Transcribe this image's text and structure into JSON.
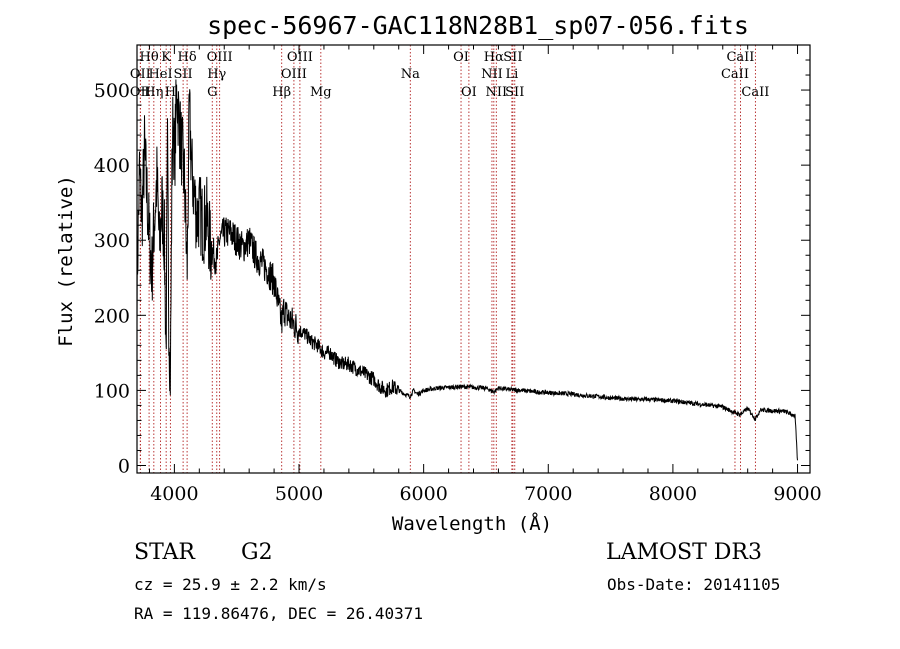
{
  "chart_data": {
    "type": "line",
    "title": "spec-56967-GAC118N28B1_sp07-056.fits",
    "xlabel": "Wavelength (Å)",
    "ylabel": "Flux (relative)",
    "xlim": [
      3700,
      9100
    ],
    "ylim": [
      -10,
      560
    ],
    "xticks": [
      4000,
      5000,
      6000,
      7000,
      8000,
      9000
    ],
    "xtick_labels": [
      "4000",
      "5000",
      "6000",
      "7000",
      "8000",
      "9000"
    ],
    "yticks": [
      0,
      100,
      200,
      300,
      400,
      500
    ],
    "ytick_labels": [
      "0",
      "100",
      "200",
      "300",
      "400",
      "500"
    ],
    "xminor_step": 200,
    "yminor_step": 20,
    "series": [
      {
        "name": "spectrum",
        "x": [
          3700,
          3720,
          3740,
          3760,
          3780,
          3800,
          3820,
          3840,
          3860,
          3880,
          3900,
          3920,
          3933,
          3945,
          3955,
          3968,
          3980,
          3990,
          4000,
          4020,
          4040,
          4060,
          4080,
          4102,
          4120,
          4140,
          4160,
          4180,
          4200,
          4230,
          4260,
          4290,
          4320,
          4340,
          4360,
          4400,
          4450,
          4500,
          4550,
          4600,
          4650,
          4700,
          4750,
          4800,
          4861,
          4880,
          4900,
          4950,
          5000,
          5050,
          5100,
          5150,
          5200,
          5250,
          5300,
          5350,
          5400,
          5450,
          5500,
          5550,
          5600,
          5650,
          5700,
          5750,
          5800,
          5850,
          5890,
          5920,
          5950,
          6000,
          6100,
          6200,
          6300,
          6400,
          6500,
          6563,
          6600,
          6700,
          6800,
          6900,
          7000,
          7100,
          7200,
          7300,
          7400,
          7500,
          7600,
          7700,
          7800,
          7900,
          8000,
          8100,
          8200,
          8300,
          8400,
          8498,
          8542,
          8600,
          8662,
          8700,
          8800,
          8900,
          8980,
          9000
        ],
        "y": [
          240,
          390,
          330,
          420,
          360,
          300,
          260,
          330,
          380,
          290,
          350,
          300,
          150,
          420,
          200,
          120,
          380,
          470,
          400,
          500,
          450,
          420,
          380,
          260,
          470,
          390,
          360,
          330,
          340,
          320,
          330,
          290,
          280,
          270,
          300,
          310,
          310,
          300,
          290,
          300,
          280,
          270,
          260,
          245,
          190,
          210,
          200,
          190,
          180,
          175,
          165,
          160,
          150,
          150,
          140,
          135,
          135,
          130,
          125,
          120,
          115,
          105,
          100,
          105,
          100,
          95,
          92,
          100,
          95,
          100,
          103,
          104,
          105,
          104,
          103,
          98,
          103,
          101,
          100,
          98,
          97,
          96,
          95,
          93,
          92,
          90,
          89,
          88,
          88,
          87,
          86,
          84,
          82,
          80,
          78,
          70,
          68,
          76,
          62,
          74,
          73,
          72,
          66,
          5
        ]
      }
    ],
    "line_markers": [
      {
        "label": "Hθ",
        "x": 3797,
        "row": 1
      },
      {
        "label": "OII",
        "x": 3727,
        "row": 2
      },
      {
        "label": "OII",
        "x": 3727,
        "row": 3
      },
      {
        "label": "Hη",
        "x": 3835,
        "row": 3
      },
      {
        "label": "K",
        "x": 3934,
        "row": 1
      },
      {
        "label": "HeI",
        "x": 3889,
        "row": 2
      },
      {
        "label": "H",
        "x": 3968,
        "row": 3
      },
      {
        "label": "SII",
        "x": 4070,
        "row": 2
      },
      {
        "label": "Hδ",
        "x": 4102,
        "row": 1
      },
      {
        "label": "OIII",
        "x": 4363,
        "row": 1
      },
      {
        "label": "Hγ",
        "x": 4340,
        "row": 2
      },
      {
        "label": "G",
        "x": 4304,
        "row": 3
      },
      {
        "label": "Hβ",
        "x": 4861,
        "row": 3
      },
      {
        "label": "OIII",
        "x": 5007,
        "row": 1
      },
      {
        "label": "OIII",
        "x": 4959,
        "row": 2
      },
      {
        "label": "Mg",
        "x": 5175,
        "row": 3
      },
      {
        "label": "Na",
        "x": 5893,
        "row": 2
      },
      {
        "label": "OI",
        "x": 6300,
        "row": 1
      },
      {
        "label": "OI",
        "x": 6363,
        "row": 3
      },
      {
        "label": "Hα",
        "x": 6563,
        "row": 1
      },
      {
        "label": "NII",
        "x": 6548,
        "row": 2
      },
      {
        "label": "NII",
        "x": 6583,
        "row": 3
      },
      {
        "label": "SII",
        "x": 6716,
        "row": 1
      },
      {
        "label": "Li",
        "x": 6708,
        "row": 2
      },
      {
        "label": "SII",
        "x": 6731,
        "row": 3
      },
      {
        "label": "CaII",
        "x": 8542,
        "row": 1
      },
      {
        "label": "CaII",
        "x": 8498,
        "row": 2
      },
      {
        "label": "CaII",
        "x": 8662,
        "row": 3
      }
    ],
    "colors": {
      "spectrum": "#000000",
      "markers": "#b22222",
      "axes": "#000000"
    }
  },
  "info": {
    "object_type": "STAR",
    "subclass": "G2",
    "survey": "LAMOST DR3",
    "redshift": "cz = 25.9 ± 2.2 km/s",
    "obs_date": "Obs-Date: 20141105",
    "coords": "RA = 119.86476, DEC =  26.40371"
  }
}
